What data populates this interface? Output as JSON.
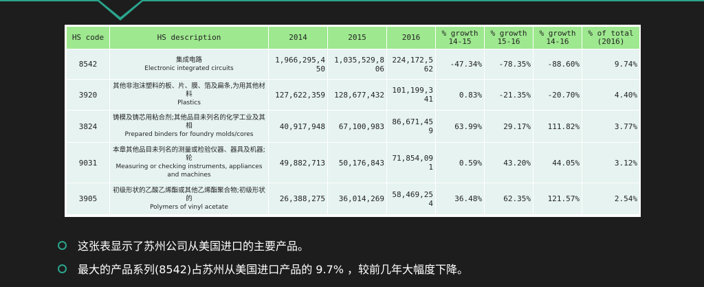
{
  "table": {
    "headers": [
      "HS code",
      "HS description",
      "2014",
      "2015",
      "2016",
      "% growth\n14-15",
      "% growth\n15-16",
      "% growth\n14-16",
      "% of total\n(2016)"
    ],
    "rows": [
      {
        "code": "8542",
        "desc_zh": "集成电路",
        "desc_en": "Electronic integrated circuits",
        "y2014": "1,966,295,450",
        "y2015": "1,035,529,806",
        "y2016": "224,172,562",
        "g1415": "-47.34%",
        "g1516": "-78.35%",
        "g1416": "-88.60%",
        "share": "9.74%"
      },
      {
        "code": "3920",
        "desc_zh": "其他非泡沫塑料的板、片、膜、箔及扁条,为用其他材料",
        "desc_en": "Plastics",
        "y2014": "127,622,359",
        "y2015": "128,677,432",
        "y2016": "101,199,341",
        "g1415": "0.83%",
        "g1516": "-21.35%",
        "g1416": "-20.70%",
        "share": "4.40%"
      },
      {
        "code": "3824",
        "desc_zh": "铸模及铸芯用粘合剂;其他品目未列名的化学工业及其相",
        "desc_en": "Prepared binders for foundry molds/cores",
        "y2014": "40,917,948",
        "y2015": "67,100,983",
        "y2016": "86,671,459",
        "g1415": "63.99%",
        "g1516": "29.17%",
        "g1416": "111.82%",
        "share": "3.77%"
      },
      {
        "code": "9031",
        "desc_zh": "本章其他品目未列名的测量或检验仪器、器具及机器;轮",
        "desc_en": "Measuring or checking instruments, appliances and machines",
        "y2014": "49,882,713",
        "y2015": "50,176,843",
        "y2016": "71,854,091",
        "g1415": "0.59%",
        "g1516": "43.20%",
        "g1416": "44.05%",
        "share": "3.12%"
      },
      {
        "code": "3905",
        "desc_zh": "初级形状的乙酸乙烯酯或其他乙烯酯聚合物;初级形状的",
        "desc_en": "Polymers of vinyl acetate",
        "y2014": "26,388,275",
        "y2015": "36,014,269",
        "y2016": "58,469,254",
        "g1415": "36.48%",
        "g1516": "62.35%",
        "g1416": "121.57%",
        "share": "2.54%"
      }
    ]
  },
  "bullets": [
    "这张表显示了苏州公司从美国进口的主要产品。",
    "最大的产品系列(8542)占苏州从美国进口产品的 9.7% ，较前几年大幅度下降。"
  ],
  "colors": {
    "accent": "#2aa58c",
    "header_bg": "#9ee88f",
    "cell_bg": "#e6f3f0",
    "slide_bg": "#1d1d1d"
  }
}
